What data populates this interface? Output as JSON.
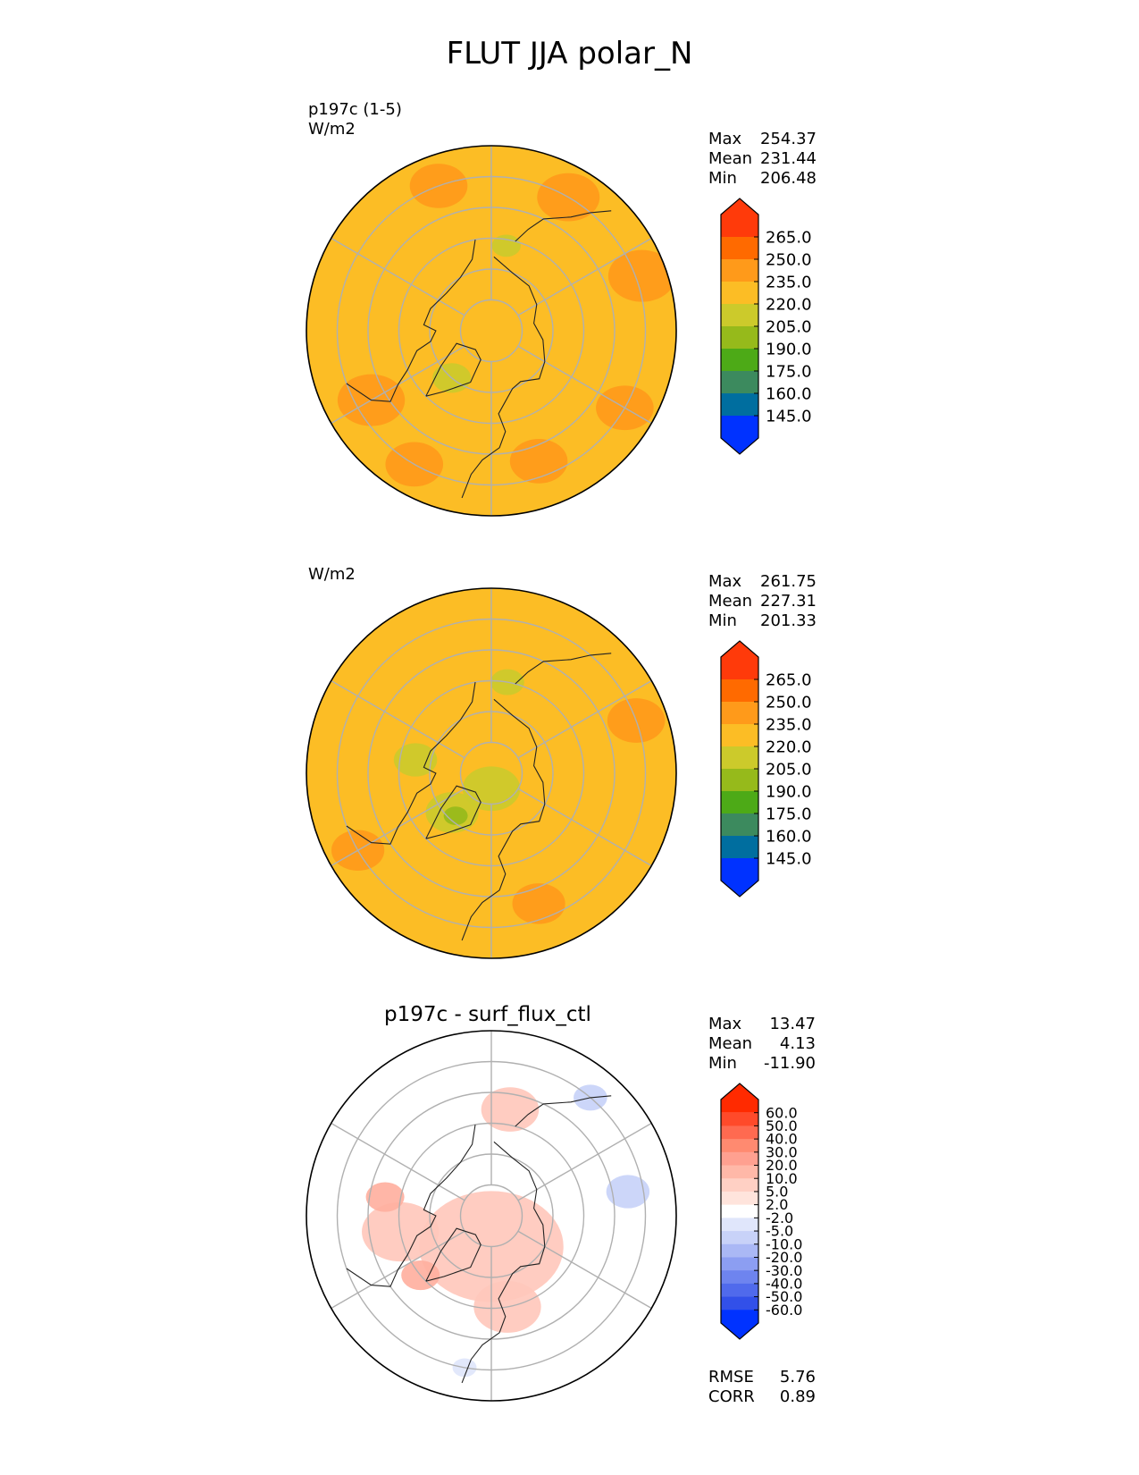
{
  "figure": {
    "title": "FLUT JJA polar_N"
  },
  "chart_data": [
    {
      "type": "heatmap",
      "projection": "polar_north",
      "label": "p197c (1-5)",
      "units": "W/m2",
      "stats": {
        "max": "254.37",
        "mean": "231.44",
        "min": "206.48"
      },
      "colorbar": {
        "ticks": [
          "265.0",
          "250.0",
          "235.0",
          "220.0",
          "205.0",
          "190.0",
          "175.0",
          "160.0",
          "145.0"
        ],
        "colors": [
          "#ff3a0a",
          "#ff6a00",
          "#ff9a1a",
          "#fcbd25",
          "#ccca2b",
          "#96ba1b",
          "#4daa17",
          "#3c8a5e",
          "#006e9f",
          "#0032ff"
        ]
      },
      "background_color": "#fcbd25",
      "regions": [
        {
          "color": "#ff9a1a",
          "lat": 45,
          "lon": -60,
          "r": 0.14
        },
        {
          "color": "#ff9a1a",
          "lat": 40,
          "lon": -30,
          "r": 0.12
        },
        {
          "color": "#ff9a1a",
          "lat": 45,
          "lon": 20,
          "r": 0.12
        },
        {
          "color": "#ff9a1a",
          "lat": 40,
          "lon": 60,
          "r": 0.12
        },
        {
          "color": "#ff9a1a",
          "lat": 38,
          "lon": 110,
          "r": 0.14
        },
        {
          "color": "#ff9a1a",
          "lat": 40,
          "lon": 150,
          "r": 0.13
        },
        {
          "color": "#ff9a1a",
          "lat": 40,
          "lon": -160,
          "r": 0.12
        },
        {
          "color": "#ccca2b",
          "lat": 70,
          "lon": -40,
          "r": 0.08
        },
        {
          "color": "#ccca2b",
          "lat": 62,
          "lon": 170,
          "r": 0.06
        }
      ]
    },
    {
      "type": "heatmap",
      "projection": "polar_north",
      "units": "W/m2",
      "stats": {
        "max": "261.75",
        "mean": "227.31",
        "min": "201.33"
      },
      "colorbar": {
        "ticks": [
          "265.0",
          "250.0",
          "235.0",
          "220.0",
          "205.0",
          "190.0",
          "175.0",
          "160.0",
          "145.0"
        ],
        "colors": [
          "#ff3a0a",
          "#ff6a00",
          "#ff9a1a",
          "#fcbd25",
          "#ccca2b",
          "#96ba1b",
          "#4daa17",
          "#3c8a5e",
          "#006e9f",
          "#0032ff"
        ]
      },
      "background_color": "#fcbd25",
      "regions": [
        {
          "color": "#ccca2b",
          "lat": 85,
          "lon": 0,
          "r": 0.12
        },
        {
          "color": "#ccca2b",
          "lat": 72,
          "lon": -45,
          "r": 0.11
        },
        {
          "color": "#ccca2b",
          "lat": 65,
          "lon": -100,
          "r": 0.09
        },
        {
          "color": "#ccca2b",
          "lat": 60,
          "lon": 170,
          "r": 0.07
        },
        {
          "color": "#96ba1b",
          "lat": 72,
          "lon": -40,
          "r": 0.05
        },
        {
          "color": "#ff9a1a",
          "lat": 45,
          "lon": 20,
          "r": 0.11
        },
        {
          "color": "#ff9a1a",
          "lat": 40,
          "lon": 110,
          "r": 0.12
        },
        {
          "color": "#ff9a1a",
          "lat": 40,
          "lon": -60,
          "r": 0.11
        }
      ]
    },
    {
      "type": "heatmap",
      "projection": "polar_north",
      "title": "p197c - surf_flux_ctl",
      "stats": {
        "max": "13.47",
        "mean": "4.13",
        "min": "-11.90"
      },
      "colorbar": {
        "ticks": [
          "60.0",
          "50.0",
          "40.0",
          "30.0",
          "20.0",
          "10.0",
          "5.0",
          "2.0",
          "-2.0",
          "-5.0",
          "-10.0",
          "-20.0",
          "-30.0",
          "-40.0",
          "-50.0",
          "-60.0"
        ],
        "colors": [
          "#ff2a00",
          "#ff4a2a",
          "#ff6a50",
          "#ff8a70",
          "#ffa090",
          "#ffb8a8",
          "#ffd0c4",
          "#ffe4dc",
          "#ffffff",
          "#e0e6fb",
          "#c8d2f8",
          "#aab8f5",
          "#8c9ef2",
          "#6e84ef",
          "#506aec",
          "#3250e9",
          "#0032ff"
        ]
      },
      "background_color": "#ffffff",
      "regions": [
        {
          "color": "#ffc8bc",
          "lat": 80,
          "lon": 0,
          "r": 0.3
        },
        {
          "color": "#ffc8bc",
          "lat": 60,
          "lon": -80,
          "r": 0.16
        },
        {
          "color": "#ffc8bc",
          "lat": 60,
          "lon": 10,
          "r": 0.14
        },
        {
          "color": "#ffc8bc",
          "lat": 55,
          "lon": 170,
          "r": 0.12
        },
        {
          "color": "#ffb0a0",
          "lat": 60,
          "lon": -50,
          "r": 0.08
        },
        {
          "color": "#ffb0a0",
          "lat": 55,
          "lon": -100,
          "r": 0.08
        },
        {
          "color": "#c8d2f8",
          "lat": 45,
          "lon": 100,
          "r": 0.09
        },
        {
          "color": "#c8d2f8",
          "lat": 40,
          "lon": 140,
          "r": 0.07
        },
        {
          "color": "#e0e6fb",
          "lat": 40,
          "lon": -10,
          "r": 0.05
        }
      ],
      "metrics": {
        "rmse": "5.76",
        "corr": "0.89"
      }
    }
  ],
  "labels": {
    "max": "Max",
    "mean": "Mean",
    "min": "Min",
    "rmse": "RMSE",
    "corr": "CORR"
  }
}
